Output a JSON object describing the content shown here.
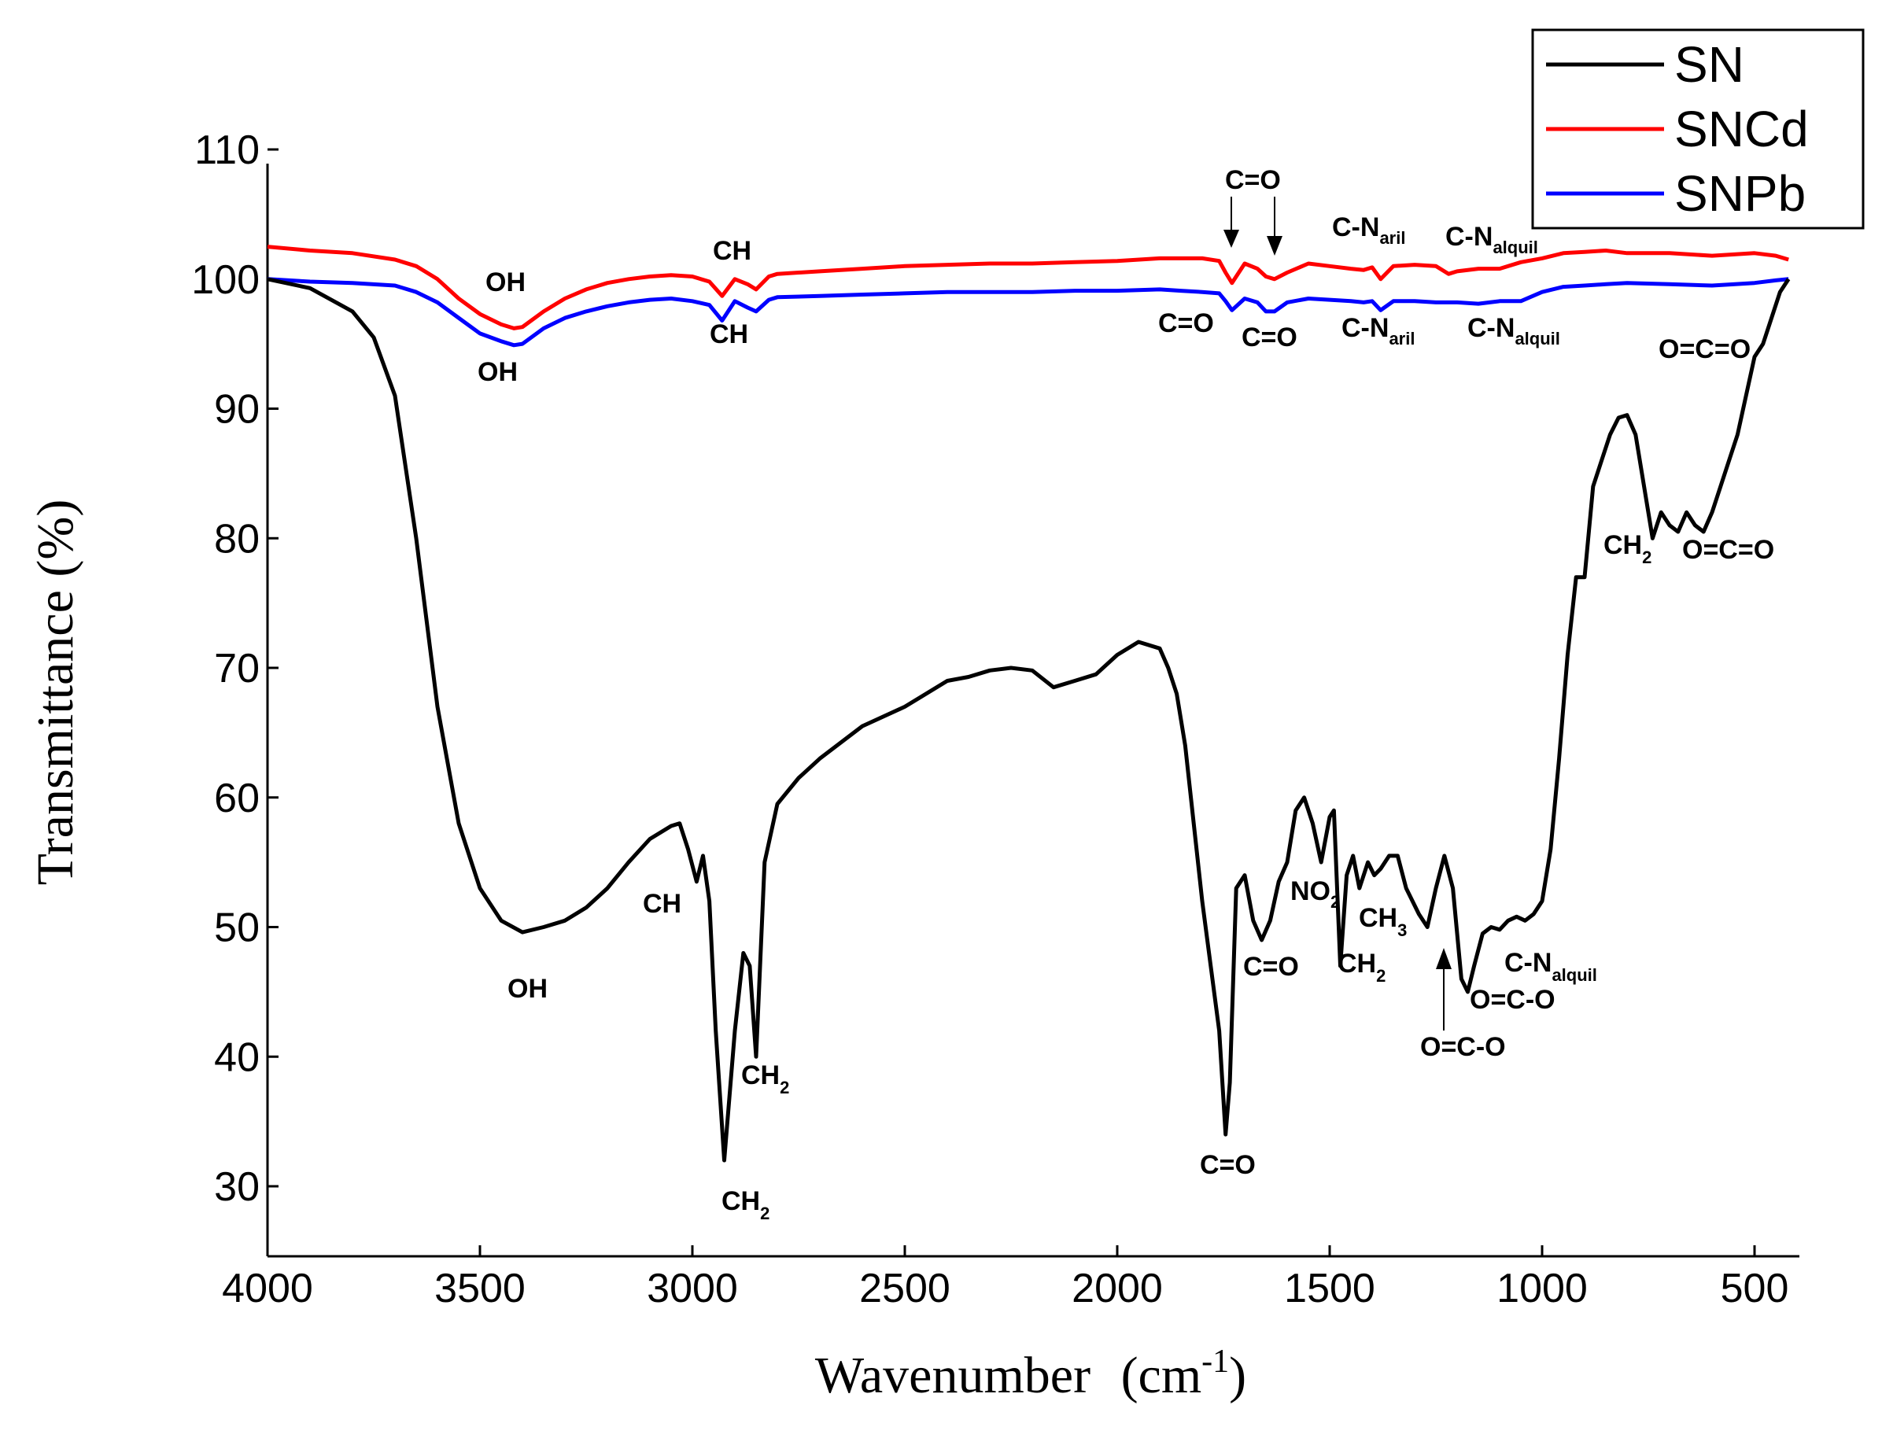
{
  "chart_data": {
    "type": "line",
    "title": "",
    "xlabel": "Wavenumber",
    "xlabel_unit": "(cm",
    "xlabel_unit_sup": "-1",
    "xlabel_unit_close": ")",
    "ylabel": "Transmittance (%)",
    "xlim": [
      4000,
      400
    ],
    "ylim": [
      25,
      110
    ],
    "x_ticks": [
      4000,
      3500,
      3000,
      2500,
      2000,
      1500,
      1000,
      500
    ],
    "y_ticks": [
      30,
      40,
      50,
      60,
      70,
      80,
      90,
      100,
      110
    ],
    "grid": false,
    "legend_position": "top-right",
    "colors": {
      "SN": "#000000",
      "SNCd": "#ff0000",
      "SNPb": "#0000ff"
    },
    "series": [
      {
        "name": "SN",
        "x": [
          4000,
          3900,
          3800,
          3750,
          3700,
          3650,
          3600,
          3550,
          3500,
          3450,
          3400,
          3350,
          3300,
          3250,
          3200,
          3150,
          3100,
          3050,
          3030,
          3010,
          2990,
          2975,
          2960,
          2945,
          2925,
          2900,
          2880,
          2865,
          2850,
          2830,
          2800,
          2750,
          2700,
          2600,
          2500,
          2400,
          2350,
          2300,
          2250,
          2200,
          2150,
          2100,
          2050,
          2000,
          1950,
          1900,
          1880,
          1860,
          1840,
          1820,
          1800,
          1780,
          1760,
          1745,
          1735,
          1720,
          1700,
          1680,
          1660,
          1640,
          1620,
          1600,
          1580,
          1560,
          1540,
          1520,
          1500,
          1490,
          1475,
          1460,
          1445,
          1430,
          1410,
          1395,
          1380,
          1360,
          1340,
          1320,
          1290,
          1270,
          1250,
          1230,
          1210,
          1190,
          1175,
          1160,
          1140,
          1120,
          1100,
          1080,
          1060,
          1040,
          1020,
          1000,
          980,
          960,
          940,
          920,
          900,
          880,
          860,
          840,
          820,
          800,
          780,
          760,
          740,
          720,
          700,
          680,
          660,
          640,
          620,
          600,
          580,
          560,
          540,
          520,
          500,
          480,
          460,
          440,
          420
        ],
        "values": [
          100,
          99.3,
          97.5,
          95.5,
          91,
          80,
          67,
          58,
          53,
          50.5,
          49.6,
          50,
          50.5,
          51.5,
          53,
          55,
          56.8,
          57.8,
          58,
          56,
          53.5,
          55.5,
          52,
          42,
          32,
          42,
          48,
          47,
          40,
          55,
          59.5,
          61.5,
          63,
          65.5,
          67,
          69,
          69.3,
          69.8,
          70,
          69.8,
          68.5,
          69,
          69.5,
          71,
          72,
          71.5,
          70,
          68,
          64,
          58,
          52,
          47,
          42,
          34,
          38,
          53,
          54,
          50.5,
          49,
          50.5,
          53.5,
          55,
          59,
          60,
          58,
          55,
          58.5,
          59,
          47,
          54,
          55.5,
          53,
          55,
          54,
          54.5,
          55.5,
          55.5,
          53,
          51,
          50,
          53,
          55.5,
          53,
          46,
          45,
          47,
          49.5,
          50,
          49.8,
          50.5,
          50.8,
          50.5,
          51,
          52,
          56,
          63,
          71,
          77,
          77,
          84,
          86,
          88,
          89.3,
          89.5,
          88,
          84,
          80,
          82,
          81,
          80.5,
          82,
          81,
          80.5,
          82,
          84,
          86,
          88,
          91,
          94,
          95,
          97,
          99,
          100
        ]
      },
      {
        "name": "SNCd",
        "x": [
          4000,
          3900,
          3800,
          3700,
          3650,
          3600,
          3550,
          3500,
          3450,
          3420,
          3400,
          3350,
          3300,
          3250,
          3200,
          3150,
          3100,
          3050,
          3000,
          2960,
          2930,
          2900,
          2870,
          2850,
          2820,
          2800,
          2700,
          2600,
          2500,
          2400,
          2300,
          2200,
          2100,
          2000,
          1900,
          1850,
          1800,
          1760,
          1745,
          1730,
          1700,
          1670,
          1650,
          1630,
          1600,
          1550,
          1500,
          1450,
          1420,
          1400,
          1380,
          1350,
          1300,
          1250,
          1220,
          1200,
          1150,
          1100,
          1050,
          1000,
          950,
          900,
          850,
          800,
          700,
          600,
          500,
          450,
          420
        ],
        "values": [
          102.5,
          102.2,
          102,
          101.5,
          101,
          100,
          98.5,
          97.3,
          96.5,
          96.2,
          96.3,
          97.5,
          98.5,
          99.2,
          99.7,
          100,
          100.2,
          100.3,
          100.2,
          99.8,
          98.7,
          100,
          99.6,
          99.2,
          100.2,
          100.4,
          100.6,
          100.8,
          101,
          101.1,
          101.2,
          101.2,
          101.3,
          101.4,
          101.6,
          101.6,
          101.6,
          101.4,
          100.5,
          99.7,
          101.2,
          100.8,
          100.2,
          100,
          100.5,
          101.2,
          101,
          100.8,
          100.7,
          100.9,
          100,
          101,
          101.1,
          101,
          100.4,
          100.6,
          100.8,
          100.8,
          101.3,
          101.6,
          102,
          102.1,
          102.2,
          102,
          102,
          101.8,
          102,
          101.8,
          101.5
        ]
      },
      {
        "name": "SNPb",
        "x": [
          4000,
          3900,
          3800,
          3700,
          3650,
          3600,
          3550,
          3500,
          3450,
          3420,
          3400,
          3350,
          3300,
          3250,
          3200,
          3150,
          3100,
          3050,
          3000,
          2960,
          2930,
          2900,
          2870,
          2850,
          2820,
          2800,
          2700,
          2600,
          2500,
          2400,
          2300,
          2200,
          2100,
          2000,
          1900,
          1850,
          1800,
          1760,
          1745,
          1730,
          1700,
          1670,
          1650,
          1630,
          1600,
          1550,
          1500,
          1450,
          1420,
          1400,
          1380,
          1350,
          1300,
          1250,
          1200,
          1150,
          1100,
          1050,
          1000,
          950,
          900,
          850,
          800,
          700,
          600,
          500,
          450,
          420
        ],
        "values": [
          100,
          99.8,
          99.7,
          99.5,
          99,
          98.2,
          97,
          95.8,
          95.2,
          94.9,
          95,
          96.2,
          97,
          97.5,
          97.9,
          98.2,
          98.4,
          98.5,
          98.3,
          98,
          96.8,
          98.3,
          97.8,
          97.5,
          98.4,
          98.6,
          98.7,
          98.8,
          98.9,
          99,
          99,
          99,
          99.1,
          99.1,
          99.2,
          99.1,
          99,
          98.9,
          98.3,
          97.6,
          98.5,
          98.2,
          97.5,
          97.5,
          98.2,
          98.5,
          98.4,
          98.3,
          98.2,
          98.3,
          97.6,
          98.3,
          98.3,
          98.2,
          98.2,
          98.1,
          98.3,
          98.3,
          99,
          99.4,
          99.5,
          99.6,
          99.7,
          99.6,
          99.5,
          99.7,
          99.9,
          100
        ]
      }
    ],
    "annotations": [
      {
        "id": "sn-oh",
        "text": "OH",
        "sub": ""
      },
      {
        "id": "sn-ch",
        "text": "CH",
        "sub": ""
      },
      {
        "id": "sn-ch2-a",
        "text": "CH",
        "sub": "2"
      },
      {
        "id": "sn-ch2-b",
        "text": "CH",
        "sub": "2"
      },
      {
        "id": "sn-co-1",
        "text": "C=O",
        "sub": ""
      },
      {
        "id": "sn-co-2",
        "text": "C=O",
        "sub": ""
      },
      {
        "id": "sn-no2",
        "text": "NO",
        "sub": "2"
      },
      {
        "id": "sn-ch3",
        "text": "CH",
        "sub": "3"
      },
      {
        "id": "sn-ch2-c",
        "text": "CH",
        "sub": "2"
      },
      {
        "id": "sn-oco-1",
        "text": "O=C-O",
        "sub": ""
      },
      {
        "id": "sn-oco-2",
        "text": "O=C-O",
        "sub": ""
      },
      {
        "id": "sn-cn-alquil",
        "text": "C-N",
        "sub": "alquil"
      },
      {
        "id": "sn-ch2-d",
        "text": "CH",
        "sub": "2"
      },
      {
        "id": "sn-oco2",
        "text": "O=C=O",
        "sub": ""
      },
      {
        "id": "cd-oh",
        "text": "OH",
        "sub": ""
      },
      {
        "id": "cd-ch",
        "text": "CH",
        "sub": ""
      },
      {
        "id": "cd-co",
        "text": "C=O",
        "sub": ""
      },
      {
        "id": "cd-cn-aril",
        "text": "C-N",
        "sub": "aril"
      },
      {
        "id": "cd-cn-alquil",
        "text": "C-N",
        "sub": "alquil"
      },
      {
        "id": "pb-oh",
        "text": "OH",
        "sub": ""
      },
      {
        "id": "pb-ch",
        "text": "CH",
        "sub": ""
      },
      {
        "id": "pb-co-1",
        "text": "C=O",
        "sub": ""
      },
      {
        "id": "pb-co-2",
        "text": "C=O",
        "sub": ""
      },
      {
        "id": "pb-cn-aril",
        "text": "C-N",
        "sub": "aril"
      },
      {
        "id": "pb-cn-alquil",
        "text": "C-N",
        "sub": "alquil"
      },
      {
        "id": "pb-oco2",
        "text": "O=C=O",
        "sub": ""
      }
    ]
  }
}
